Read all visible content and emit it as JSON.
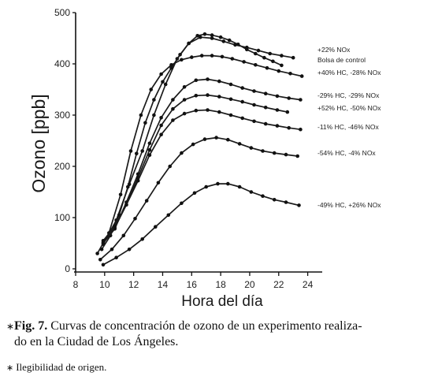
{
  "chart_data": {
    "type": "line",
    "xlabel": "Hora del día",
    "ylabel": "Ozono  [ppb]",
    "xlim": [
      8,
      25
    ],
    "ylim": [
      0,
      500
    ],
    "xticks": [
      8,
      10,
      12,
      14,
      16,
      18,
      20,
      22,
      24
    ],
    "yticks": [
      0,
      100,
      200,
      300,
      400,
      500
    ],
    "grid": false,
    "legend": "labels at right end of each line",
    "series": [
      {
        "name": "+22% NOx",
        "x": [
          9.9,
          10.8,
          11.7,
          12.6,
          13.4,
          14.2,
          15.0,
          15.8,
          16.6,
          17.4,
          18.2,
          19.0,
          19.8,
          20.6,
          21.4,
          22.2,
          23.0
        ],
        "y": [
          48,
          95,
          165,
          230,
          300,
          360,
          410,
          440,
          452,
          450,
          444,
          437,
          432,
          426,
          420,
          416,
          412
        ]
      },
      {
        "name": "Bolsa de control",
        "x": [
          9.8,
          10.4,
          11.0,
          11.6,
          12.2,
          12.8,
          13.4,
          14.0,
          14.6,
          15.2,
          15.8,
          16.4,
          16.9,
          17.4,
          18.0,
          18.6,
          19.2,
          19.8,
          20.4,
          21.0,
          21.6,
          22.2
        ],
        "y": [
          38,
          65,
          105,
          160,
          225,
          285,
          330,
          365,
          392,
          418,
          440,
          455,
          458,
          456,
          452,
          446,
          438,
          428,
          420,
          412,
          405,
          397
        ]
      },
      {
        "name": "+40% HC, -28% NOx",
        "x": [
          9.5,
          10.3,
          11.1,
          11.8,
          12.5,
          13.2,
          13.9,
          14.6,
          15.3,
          16.0,
          16.7,
          17.4,
          18.1,
          18.8,
          19.6,
          20.4,
          21.2,
          22.0,
          22.8,
          23.6
        ],
        "y": [
          30,
          70,
          145,
          230,
          300,
          350,
          380,
          398,
          408,
          413,
          416,
          416,
          414,
          410,
          404,
          398,
          392,
          386,
          381,
          376
        ]
      },
      {
        "name": "-29% HC, -29% NOx",
        "x": [
          9.9,
          10.7,
          11.5,
          12.3,
          13.1,
          13.9,
          14.7,
          15.5,
          16.3,
          17.1,
          17.9,
          18.7,
          19.5,
          20.3,
          21.1,
          21.9,
          22.7,
          23.5
        ],
        "y": [
          50,
          78,
          130,
          185,
          245,
          295,
          330,
          355,
          368,
          370,
          366,
          360,
          353,
          347,
          342,
          337,
          333,
          330
        ]
      },
      {
        "name": "+52% HC, -50% NOx",
        "x": [
          9.9,
          10.7,
          11.5,
          12.3,
          13.1,
          13.9,
          14.7,
          15.5,
          16.3,
          17.1,
          17.9,
          18.7,
          19.5,
          20.3,
          21.1,
          21.9,
          22.6
        ],
        "y": [
          52,
          80,
          125,
          178,
          232,
          280,
          312,
          330,
          338,
          339,
          336,
          331,
          326,
          320,
          315,
          310,
          306
        ]
      },
      {
        "name": "-11% HC, -46% NOx",
        "x": [
          9.9,
          10.7,
          11.5,
          12.3,
          13.1,
          13.9,
          14.7,
          15.5,
          16.3,
          17.1,
          17.9,
          18.7,
          19.5,
          20.3,
          21.1,
          21.9,
          22.7,
          23.5
        ],
        "y": [
          55,
          83,
          125,
          172,
          222,
          262,
          290,
          303,
          309,
          310,
          306,
          300,
          294,
          288,
          283,
          279,
          275,
          272
        ]
      },
      {
        "name": "-54% HC, -4% NOx",
        "x": [
          9.7,
          10.5,
          11.3,
          12.1,
          12.9,
          13.7,
          14.5,
          15.3,
          16.1,
          16.9,
          17.7,
          18.5,
          19.3,
          20.1,
          20.9,
          21.7,
          22.5,
          23.3
        ],
        "y": [
          18,
          38,
          65,
          98,
          133,
          168,
          200,
          226,
          243,
          253,
          256,
          252,
          244,
          236,
          230,
          226,
          223,
          220
        ]
      },
      {
        "name": "-49% HC, +26% NOx",
        "x": [
          9.9,
          10.8,
          11.7,
          12.6,
          13.5,
          14.4,
          15.3,
          16.2,
          17.0,
          17.8,
          18.5,
          19.3,
          20.1,
          20.9,
          21.7,
          22.5,
          23.4
        ],
        "y": [
          8,
          22,
          38,
          58,
          82,
          105,
          128,
          148,
          160,
          166,
          166,
          160,
          150,
          142,
          135,
          130,
          124
        ]
      }
    ]
  },
  "caption": {
    "marker": "∗",
    "fig_label": "Fig. 7.",
    "text_line1": "Curvas de concentración de ozono de un experimento realiza-",
    "text_line2": "do en la Ciudad de Los Ángeles."
  },
  "footnote": {
    "marker": "∗",
    "text": "Ilegibilidad de origen."
  }
}
